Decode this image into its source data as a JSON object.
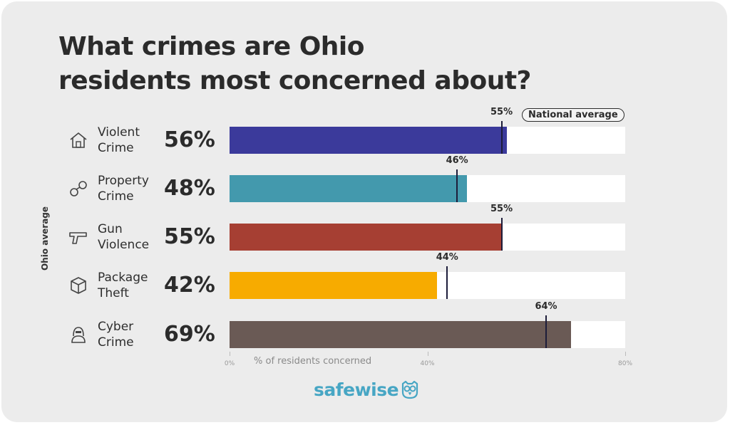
{
  "title_lines": [
    "What crimes are Ohio",
    "residents most concerned about?"
  ],
  "y_axis_label": "Ohio average",
  "x_axis_label": "% of residents concerned",
  "national_average_label": "National average",
  "brand": "safewise",
  "colors": {
    "violent": "#3b3a9b",
    "property": "#4399ad",
    "gun": "#a63f33",
    "package": "#f7ab00",
    "cyber": "#6a5a55",
    "track": "#ffffff",
    "marker": "#1d1d3a",
    "brand": "#47a6c4"
  },
  "rows": [
    {
      "icon": "house-icon",
      "label_lines": [
        "Violent",
        "Crime"
      ],
      "pct_label": "56%",
      "nat_label": "55%"
    },
    {
      "icon": "handcuffs-icon",
      "label_lines": [
        "Property",
        "Crime"
      ],
      "pct_label": "48%",
      "nat_label": "46%"
    },
    {
      "icon": "gun-icon",
      "label_lines": [
        "Gun",
        "Violence"
      ],
      "pct_label": "55%",
      "nat_label": "55%"
    },
    {
      "icon": "package-icon",
      "label_lines": [
        "Package",
        "Theft"
      ],
      "pct_label": "42%",
      "nat_label": "44%"
    },
    {
      "icon": "hacker-icon",
      "label_lines": [
        "Cyber",
        "Crime"
      ],
      "pct_label": "69%",
      "nat_label": "64%"
    }
  ],
  "chart_data": {
    "type": "bar",
    "orientation": "horizontal",
    "title": "What crimes are Ohio residents most concerned about?",
    "xlabel": "% of residents concerned",
    "ylabel": "Ohio average",
    "categories": [
      "Violent Crime",
      "Property Crime",
      "Gun Violence",
      "Package Theft",
      "Cyber Crime"
    ],
    "series": [
      {
        "name": "Ohio average",
        "values": [
          56,
          48,
          55,
          42,
          69
        ]
      },
      {
        "name": "National average",
        "values": [
          55,
          46,
          55,
          44,
          64
        ]
      }
    ],
    "xlim": [
      0,
      80
    ],
    "x_ticks": [
      "0%",
      "40%",
      "80%"
    ],
    "grid": false
  }
}
